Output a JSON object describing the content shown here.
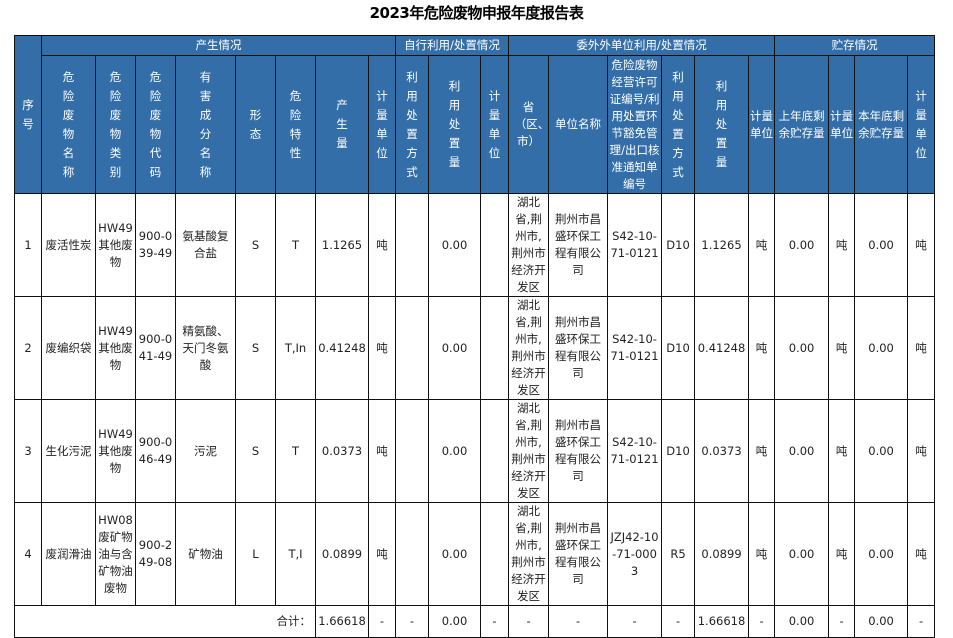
{
  "title": "2023年危险废物申报年度报告表",
  "header_color": "#336EA8",
  "groups": [
    "产生情况",
    "自行利用/处置情况",
    "委外外单位利用/处置情况",
    "贮存情况"
  ],
  "seq_header": "序号",
  "columns": [
    "危险废物名称",
    "危险废物类别",
    "危险废物代码",
    "有害成分名称",
    "形态",
    "危险特性",
    "产生量",
    "计量单位",
    "利用处置方式",
    "利用处置量",
    "计量单位",
    "省（区、市）",
    "单位名称",
    "危险废物经营许可证编号/利用处置环节豁免管理/出口核准通知单编号",
    "利用处置方式",
    "利用处置量",
    "计量单位",
    "上年底剩余贮存量",
    "计量单位",
    "本年底剩余贮存量",
    "计量单位"
  ],
  "rows": [
    [
      "1",
      "废活性炭",
      "HW49其他废物",
      "900-039-49",
      "氨基酸复合盐",
      "S",
      "T",
      "1.1265",
      "吨",
      "",
      "0.00",
      "",
      "湖北省,荆州市,荆州市经济开发区",
      "荆州市昌盛环保工程有限公司",
      "S42-10-71-0121",
      "D10",
      "1.1265",
      "吨",
      "0.00",
      "吨",
      "0.00",
      "吨"
    ],
    [
      "2",
      "废编织袋",
      "HW49其他废物",
      "900-041-49",
      "精氨酸、天门冬氨酸",
      "S",
      "T,In",
      "0.41248",
      "吨",
      "",
      "0.00",
      "",
      "湖北省,荆州市,荆州市经济开发区",
      "荆州市昌盛环保工程有限公司",
      "S42-10-71-0121",
      "D10",
      "0.41248",
      "吨",
      "0.00",
      "吨",
      "0.00",
      "吨"
    ],
    [
      "3",
      "生化污泥",
      "HW49其他废物",
      "900-046-49",
      "污泥",
      "S",
      "T",
      "0.0373",
      "吨",
      "",
      "0.00",
      "",
      "湖北省,荆州市,荆州市经济开发区",
      "荆州市昌盛环保工程有限公司",
      "S42-10-71-0121",
      "D10",
      "0.0373",
      "吨",
      "0.00",
      "吨",
      "0.00",
      "吨"
    ],
    [
      "4",
      "废润滑油",
      "HW08废矿物油与含矿物油废物",
      "900-249-08",
      "矿物油",
      "L",
      "T,I",
      "0.0899",
      "吨",
      "",
      "0.00",
      "",
      "湖北省,荆州市,荆州市经济开发区",
      "荆州市昌盛环保工程有限公司",
      "JZJ42-10-71-0003",
      "R5",
      "0.0899",
      "吨",
      "0.00",
      "吨",
      "0.00",
      "吨"
    ]
  ],
  "total": {
    "label": "合计：",
    "values": [
      "1.66618",
      "-",
      "-",
      "0.00",
      "-",
      "-",
      "-",
      "-",
      "-",
      "1.66618",
      "-",
      "0.00",
      "-",
      "0.00",
      "-"
    ]
  }
}
